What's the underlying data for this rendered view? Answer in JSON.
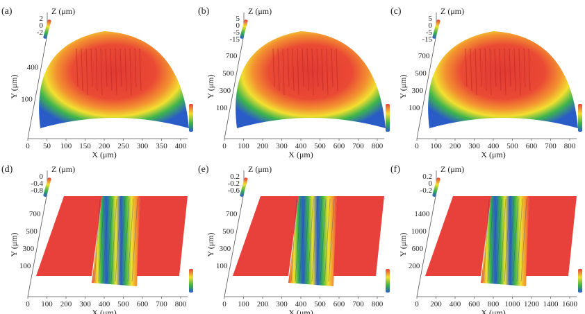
{
  "figure": {
    "panels": [
      {
        "id": "a",
        "label": "(a)",
        "type": "dome",
        "x_label": "X (μm)",
        "y_label": "Y (μm)",
        "z_label": "Z (μm)",
        "x_ticks": [
          "0",
          "50",
          "100",
          "150",
          "200",
          "250",
          "300",
          "350",
          "400"
        ],
        "y_ticks": [
          "100",
          "400"
        ],
        "z_ticks": [
          "2",
          "0",
          "-2"
        ]
      },
      {
        "id": "b",
        "label": "(b)",
        "type": "dome",
        "x_label": "X (μm)",
        "y_label": "Y (μm)",
        "z_label": "Z (μm)",
        "x_ticks": [
          "0",
          "100",
          "200",
          "300",
          "400",
          "500",
          "600",
          "700",
          "800"
        ],
        "y_ticks": [
          "100",
          "300",
          "500",
          "700"
        ],
        "z_ticks": [
          "5",
          "0",
          "-5",
          "-15"
        ]
      },
      {
        "id": "c",
        "label": "(c)",
        "type": "dome",
        "x_label": "X (μm)",
        "y_label": "Y (μm)",
        "z_label": "Z (μm)",
        "x_ticks": [
          "0",
          "100",
          "200",
          "300",
          "400",
          "500",
          "600",
          "700",
          "800"
        ],
        "y_ticks": [
          "100",
          "300",
          "500",
          "700"
        ],
        "z_ticks": [
          "5",
          "0",
          "-5",
          "-15"
        ]
      },
      {
        "id": "d",
        "label": "(d)",
        "type": "trench",
        "x_label": "X (μm)",
        "y_label": "Y (μm)",
        "z_label": "Z (μm)",
        "x_ticks": [
          "0",
          "100",
          "200",
          "300",
          "400",
          "500",
          "600",
          "700",
          "800"
        ],
        "y_ticks": [
          "100",
          "300",
          "500",
          "700"
        ],
        "z_ticks": [
          "0",
          "-0.4",
          "-0.8"
        ]
      },
      {
        "id": "e",
        "label": "(e)",
        "type": "trench",
        "x_label": "X (μm)",
        "y_label": "Y (μm)",
        "z_label": "Z (μm)",
        "x_ticks": [
          "0",
          "100",
          "200",
          "300",
          "400",
          "500",
          "600",
          "700",
          "800"
        ],
        "y_ticks": [
          "100",
          "300",
          "500",
          "700"
        ],
        "z_ticks": [
          "0.2",
          "-0.2",
          "-0.6"
        ]
      },
      {
        "id": "f",
        "label": "(f)",
        "type": "trench",
        "x_label": "X (μm)",
        "y_label": "Y (μm)",
        "z_label": "Z (μm)",
        "x_ticks": [
          "0",
          "200",
          "400",
          "600",
          "800",
          "1000",
          "1200",
          "1400",
          "1600"
        ],
        "y_ticks": [
          "200",
          "600",
          "1000",
          "1400"
        ],
        "z_ticks": [
          "0.2",
          "0",
          "-0.2"
        ]
      }
    ],
    "colors": {
      "red": "#e8403a",
      "orange": "#f08a2a",
      "yellow": "#f2e030",
      "green": "#38b24a",
      "blue": "#2a5cc8",
      "darkred": "#b8282a"
    }
  }
}
